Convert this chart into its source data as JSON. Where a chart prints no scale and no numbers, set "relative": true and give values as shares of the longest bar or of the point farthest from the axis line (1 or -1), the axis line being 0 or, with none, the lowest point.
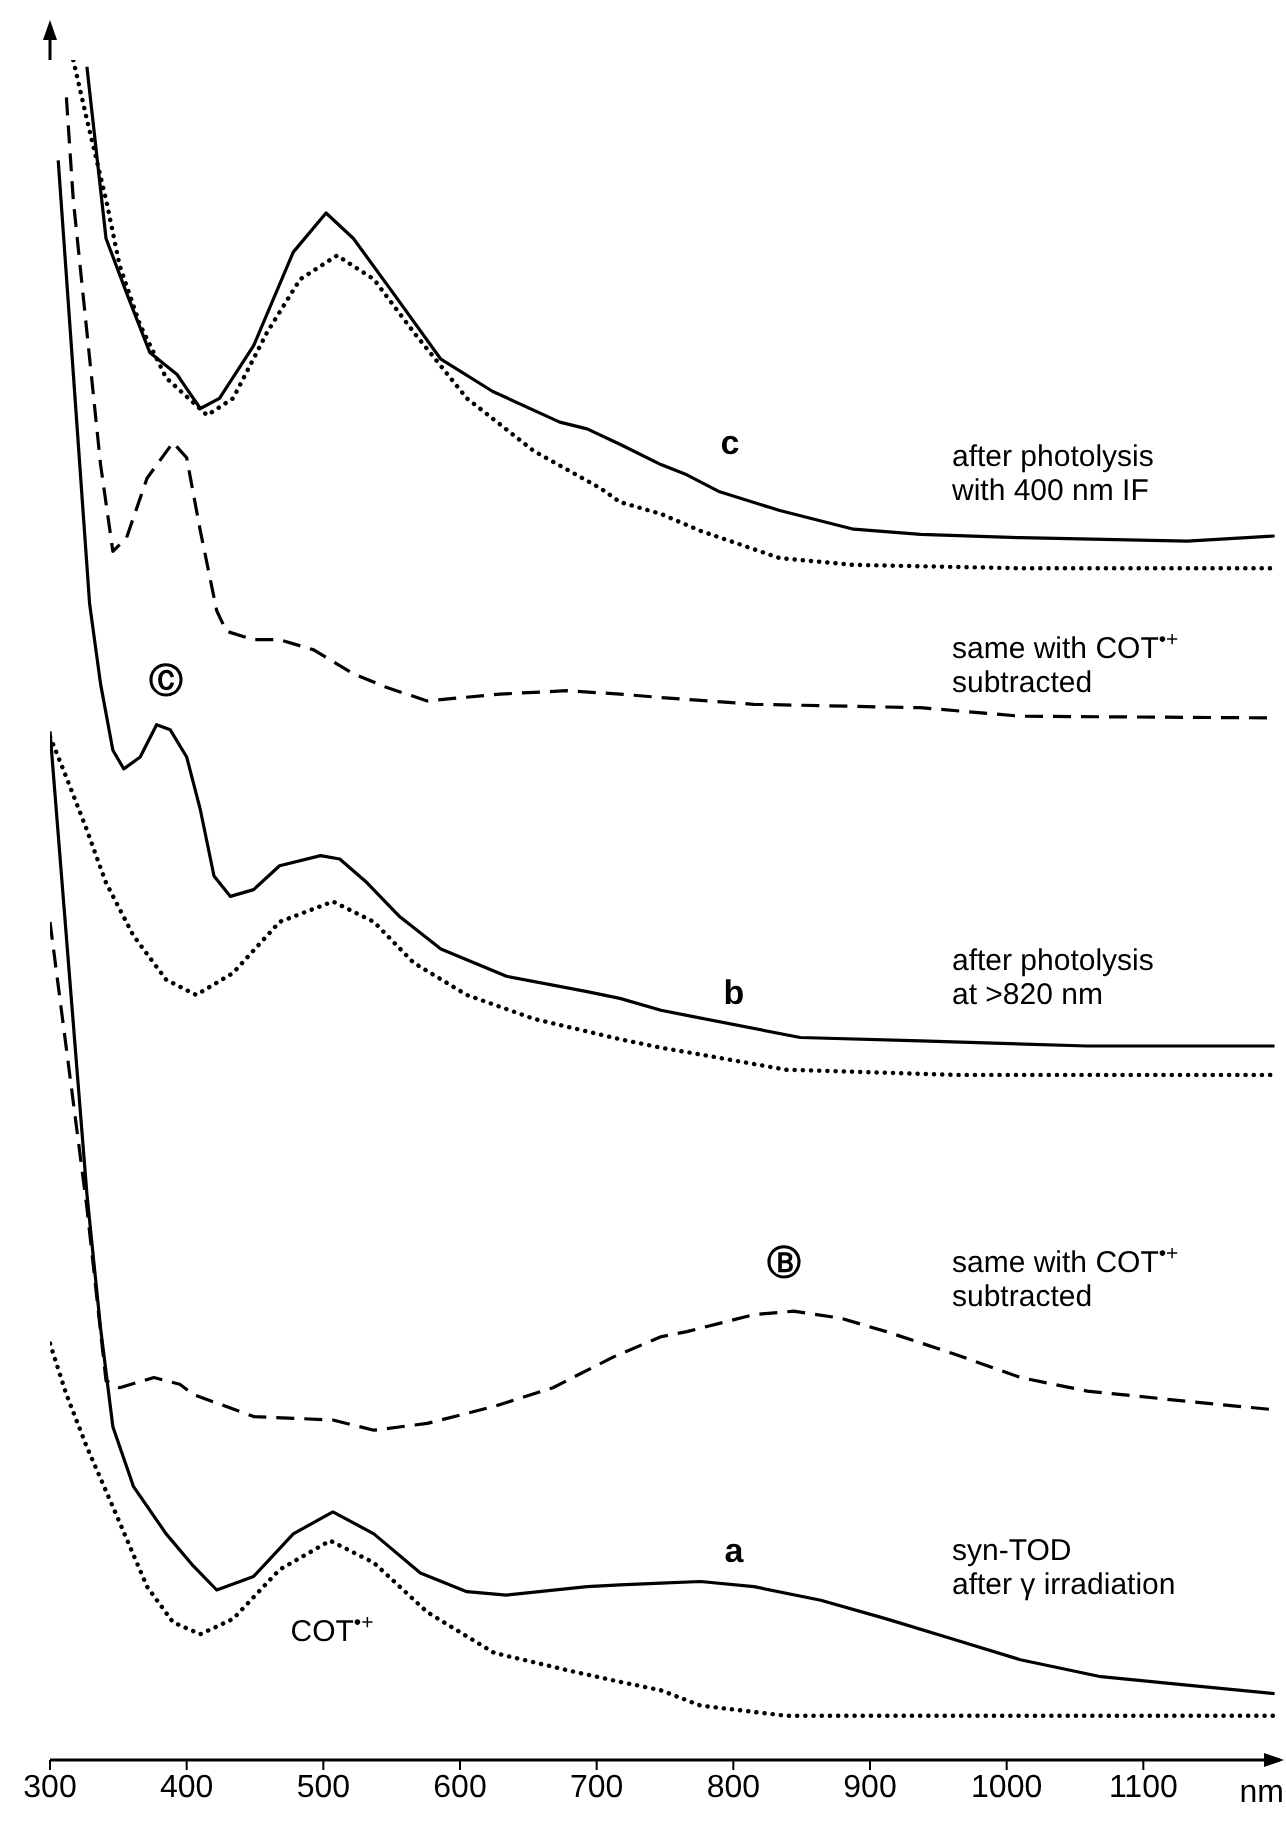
{
  "chart_data": {
    "type": "line",
    "relative": true,
    "xlabel": "nm",
    "xlim": [
      300,
      1200
    ],
    "xticks": [
      300,
      400,
      500,
      600,
      700,
      800,
      900,
      1000,
      1100
    ],
    "tick_labels": "x",
    "series": [
      {
        "color": "#000000",
        "line_style": "solid",
        "x": [
          327,
          341,
          356,
          373,
          393,
          398,
          410,
          424,
          449,
          478,
          502,
          522,
          551,
          586,
          624,
          673,
          693,
          717,
          747,
          766,
          790,
          834,
          888,
          937,
          1010,
          1132,
          1196
        ],
        "values": [
          0.996,
          0.895,
          0.863,
          0.828,
          0.815,
          0.809,
          0.795,
          0.801,
          0.832,
          0.887,
          0.91,
          0.895,
          0.863,
          0.824,
          0.805,
          0.787,
          0.783,
          0.774,
          0.762,
          0.756,
          0.746,
          0.735,
          0.724,
          0.721,
          0.719,
          0.717,
          0.72
        ]
      },
      {
        "color": "#000000",
        "line_style": "dotted",
        "x": [
          317,
          327,
          341,
          351,
          366,
          385,
          415,
          434,
          459,
          483,
          510,
          537,
          566,
          605,
          654,
          703,
          717,
          747,
          776,
          834,
          888,
          1010,
          1196
        ],
        "values": [
          1.0,
          0.965,
          0.918,
          0.879,
          0.844,
          0.813,
          0.791,
          0.801,
          0.84,
          0.871,
          0.885,
          0.871,
          0.84,
          0.801,
          0.77,
          0.748,
          0.74,
          0.733,
          0.723,
          0.707,
          0.703,
          0.701,
          0.701
        ]
      },
      {
        "color": "#000000",
        "line_style": "dashed",
        "x": [
          312,
          317,
          327,
          337,
          346,
          356,
          371,
          390,
          400,
          410,
          422,
          429,
          449,
          468,
          493,
          522,
          546,
          576,
          629,
          678,
          717,
          747,
          815,
          937,
          1010,
          1196
        ],
        "values": [
          0.978,
          0.918,
          0.84,
          0.762,
          0.711,
          0.719,
          0.754,
          0.775,
          0.766,
          0.723,
          0.676,
          0.664,
          0.659,
          0.659,
          0.653,
          0.639,
          0.631,
          0.623,
          0.627,
          0.629,
          0.627,
          0.625,
          0.621,
          0.619,
          0.614,
          0.613
        ]
      },
      {
        "color": "#000000",
        "line_style": "solid",
        "x": [
          306,
          329,
          337,
          346,
          354,
          366,
          378,
          388,
          400,
          410,
          420,
          432,
          449,
          468,
          498,
          512,
          532,
          556,
          586,
          634,
          693,
          717,
          747,
          766,
          849,
          937,
          1059,
          1196
        ],
        "values": [
          0.941,
          0.68,
          0.633,
          0.594,
          0.583,
          0.59,
          0.609,
          0.606,
          0.59,
          0.559,
          0.52,
          0.508,
          0.512,
          0.526,
          0.532,
          0.53,
          0.516,
          0.496,
          0.477,
          0.461,
          0.452,
          0.448,
          0.441,
          0.438,
          0.425,
          0.423,
          0.42,
          0.42
        ]
      },
      {
        "color": "#000000",
        "line_style": "dotted",
        "x": [
          300,
          312,
          327,
          341,
          361,
          385,
          407,
          434,
          468,
          507,
          537,
          566,
          605,
          654,
          717,
          747,
          776,
          839,
          961,
          1196
        ],
        "values": [
          0.602,
          0.578,
          0.547,
          0.516,
          0.485,
          0.459,
          0.45,
          0.463,
          0.493,
          0.505,
          0.493,
          0.469,
          0.45,
          0.436,
          0.424,
          0.419,
          0.415,
          0.406,
          0.403,
          0.403
        ]
      },
      {
        "color": "#000000",
        "line_style": "dashed",
        "x": [
          300,
          327,
          341,
          351,
          376,
          395,
          405,
          449,
          507,
          537,
          576,
          625,
          668,
          712,
          747,
          766,
          815,
          844,
          878,
          912,
          961,
          1010,
          1059,
          1132,
          1196
        ],
        "values": [
          0.493,
          0.325,
          0.223,
          0.219,
          0.225,
          0.221,
          0.215,
          0.202,
          0.2,
          0.194,
          0.198,
          0.208,
          0.219,
          0.237,
          0.249,
          0.252,
          0.262,
          0.264,
          0.26,
          0.252,
          0.239,
          0.225,
          0.217,
          0.211,
          0.206
        ]
      },
      {
        "color": "#000000",
        "line_style": "solid",
        "x": [
          300,
          327,
          337,
          346,
          361,
          385,
          405,
          422,
          449,
          478,
          507,
          537,
          571,
          605,
          634,
          693,
          717,
          747,
          776,
          815,
          864,
          912,
          961,
          1010,
          1069,
          1132,
          1196
        ],
        "values": [
          0.605,
          0.333,
          0.254,
          0.196,
          0.161,
          0.133,
          0.114,
          0.1,
          0.108,
          0.133,
          0.146,
          0.133,
          0.11,
          0.099,
          0.097,
          0.102,
          0.103,
          0.104,
          0.105,
          0.102,
          0.094,
          0.083,
          0.071,
          0.059,
          0.049,
          0.044,
          0.039
        ]
      },
      {
        "color": "#000000",
        "line_style": "dotted",
        "x": [
          300,
          312,
          327,
          346,
          371,
          390,
          410,
          434,
          468,
          505,
          537,
          576,
          625,
          683,
          717,
          747,
          776,
          839,
          961,
          1196
        ],
        "values": [
          0.245,
          0.215,
          0.184,
          0.149,
          0.102,
          0.081,
          0.074,
          0.083,
          0.112,
          0.129,
          0.116,
          0.087,
          0.063,
          0.052,
          0.046,
          0.041,
          0.032,
          0.026,
          0.026,
          0.026
        ]
      }
    ],
    "annotations": [
      "c",
      "after photolysis\nwith 400 nm IF",
      "same with COT$^{•+}$\nsubtracted",
      "Ⓒ",
      "b",
      "after photolysis\nat >820 nm",
      "Ⓑ",
      "same with COT$^{•+}$\nsubtracted",
      "a",
      "syn-TOD\nafter γ irradiation",
      "COT$^{•+}$"
    ]
  }
}
